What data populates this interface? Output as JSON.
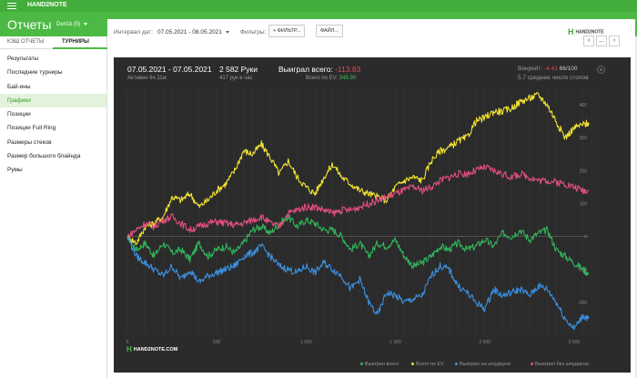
{
  "app": {
    "name": "HAND2NOTE"
  },
  "header": {
    "title": "Отчеты",
    "user": "Den1k (5)"
  },
  "sidebar": {
    "tabs": [
      {
        "label": "КЭШ ОТЧЕТЫ"
      },
      {
        "label": "ТУРНИРЫ"
      }
    ],
    "items": [
      {
        "label": "Результаты"
      },
      {
        "label": "Последние турниры"
      },
      {
        "label": "Бай-ины"
      },
      {
        "label": "Графики"
      },
      {
        "label": "Позиции"
      },
      {
        "label": "Позиции Full Ring"
      },
      {
        "label": "Размеры стеков"
      },
      {
        "label": "Размер большого блайнда"
      },
      {
        "label": "Румы"
      }
    ]
  },
  "filters": {
    "interval_label": "Интервал дат:",
    "interval_value": "07.05.2021 - 08.05.2021",
    "filters_label": "Фильтры:",
    "filter_button": "ФИЛЬТР...",
    "file_button": "ФАЙЛ..."
  },
  "brand_right": "HAND2NOTE",
  "nav": {
    "prev": "‹",
    "more": "...",
    "next": "›"
  },
  "stats": {
    "range": "07.05.2021 - 07.05.2021",
    "active": "Активен 6ч 11м",
    "hands": "2 582 Руки",
    "hands_per_hour": "417 рук в час",
    "won_label": "Выиграл всего:",
    "won_value": "-113.83",
    "ev_label": "Всего по EV:",
    "ev_value": "345.90",
    "winrate_label": "Винрейт:",
    "winrate_value": "-4.41",
    "winrate_suffix": "66/100",
    "tables": "5.7 среднее число столов"
  },
  "panel_brand": "HAND2NOTE.COM",
  "colors": {
    "green": "#31b45a",
    "yellow": "#f1e232",
    "blue": "#3a8fe0",
    "pink": "#e14e7c",
    "accent": "#4cb944"
  },
  "chart_data": {
    "type": "line",
    "x_ticks": [
      "0",
      "500",
      "1 000",
      "1 500",
      "2 000",
      "2 500"
    ],
    "y_ticks": [
      "400",
      "300",
      "200",
      "100",
      "0",
      "-100",
      "-200"
    ],
    "xlim": [
      0,
      2582
    ],
    "ylim": [
      -300,
      450
    ],
    "grid": true,
    "legend_position": "bottom-right",
    "x": [
      0,
      50,
      100,
      150,
      200,
      250,
      300,
      350,
      400,
      450,
      500,
      550,
      600,
      650,
      700,
      750,
      800,
      850,
      900,
      950,
      1000,
      1050,
      1100,
      1150,
      1200,
      1250,
      1300,
      1350,
      1400,
      1450,
      1500,
      1550,
      1600,
      1650,
      1700,
      1750,
      1800,
      1850,
      1900,
      1950,
      2000,
      2050,
      2100,
      2150,
      2200,
      2250,
      2300,
      2350,
      2400,
      2450,
      2500,
      2550,
      2582
    ],
    "series": [
      {
        "name": "Выиграл всего",
        "color": "#31b45a",
        "values": [
          0,
          -40,
          -20,
          -60,
          -20,
          -50,
          -40,
          -70,
          -20,
          -60,
          -40,
          -30,
          -50,
          -20,
          20,
          30,
          10,
          40,
          60,
          30,
          50,
          40,
          20,
          20,
          0,
          -40,
          -20,
          -60,
          -20,
          -30,
          -10,
          -60,
          -90,
          -80,
          -60,
          -30,
          -40,
          -20,
          -40,
          -30,
          -10,
          -30,
          10,
          0,
          20,
          -10,
          10,
          20,
          -40,
          -60,
          -80,
          -100,
          -113.83
        ]
      },
      {
        "name": "Всего по EV",
        "color": "#f1e232",
        "values": [
          0,
          -20,
          30,
          40,
          60,
          120,
          110,
          130,
          90,
          110,
          140,
          160,
          200,
          260,
          250,
          280,
          240,
          190,
          230,
          180,
          150,
          130,
          180,
          220,
          180,
          160,
          140,
          130,
          120,
          110,
          150,
          170,
          180,
          170,
          230,
          260,
          270,
          290,
          300,
          350,
          360,
          380,
          380,
          390,
          410,
          420,
          430,
          400,
          350,
          300,
          330,
          340,
          345.9
        ]
      },
      {
        "name": "Выиграл на шоудауне",
        "color": "#3a8fe0",
        "values": [
          0,
          -60,
          -80,
          -100,
          -120,
          -90,
          -130,
          -100,
          -140,
          -120,
          -110,
          -100,
          -90,
          -60,
          -50,
          -30,
          -60,
          -90,
          -100,
          -110,
          -90,
          -110,
          -80,
          -100,
          -120,
          -160,
          -130,
          -200,
          -240,
          -170,
          -180,
          -200,
          -190,
          -180,
          -120,
          -90,
          -100,
          -150,
          -170,
          -200,
          -220,
          -160,
          -180,
          -170,
          -160,
          -180,
          -150,
          -160,
          -200,
          -250,
          -280,
          -240,
          -250
        ]
      },
      {
        "name": "Выиграл без шоудауна",
        "color": "#e14e7c",
        "values": [
          0,
          20,
          40,
          30,
          50,
          60,
          40,
          20,
          30,
          40,
          45,
          40,
          35,
          40,
          50,
          60,
          40,
          30,
          70,
          80,
          90,
          90,
          80,
          70,
          80,
          80,
          90,
          100,
          110,
          120,
          130,
          140,
          150,
          140,
          150,
          170,
          180,
          190,
          190,
          200,
          210,
          200,
          190,
          180,
          190,
          180,
          170,
          170,
          165,
          160,
          150,
          140,
          140
        ]
      }
    ]
  }
}
